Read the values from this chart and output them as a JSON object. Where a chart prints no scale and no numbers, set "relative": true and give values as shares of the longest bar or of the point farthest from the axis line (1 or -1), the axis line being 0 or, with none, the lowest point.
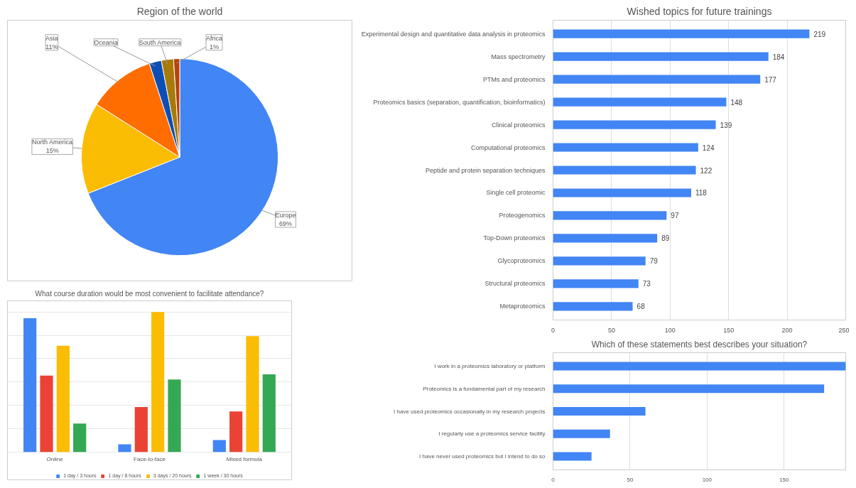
{
  "chart_data": [
    {
      "type": "pie",
      "title": "Region of the world",
      "categories": [
        "Europe",
        "North America",
        "Asia",
        "Oceania",
        "South America",
        "Africa"
      ],
      "values": [
        69,
        15,
        11,
        2,
        2,
        1
      ],
      "colors": [
        "#4285f4",
        "#fbbc04",
        "#ff6d01",
        "#0b4fb5",
        "#a77a0a",
        "#b5430b"
      ],
      "value_labels": [
        "69%",
        "15%",
        "11%",
        null,
        null,
        "1%"
      ]
    },
    {
      "type": "bar",
      "orientation": "horizontal",
      "title": "Wished topics for future trainings",
      "categories": [
        "Experimental design and quantitative data analysis in proteomics",
        "Mass spectrometry",
        "PTMs and proteomics",
        "Proteomics basics (separation, quantification, bioinformatics)",
        "Clinical proteomics",
        "Computational proteomics",
        "Peptide and protein separation techniques",
        "Single cell proteomic",
        "Proteogenomics",
        "Top-Down proteomics",
        "Glycoproteomics",
        "Structural proteomics",
        "Metaproteomics"
      ],
      "values": [
        219,
        184,
        177,
        148,
        139,
        124,
        122,
        118,
        97,
        89,
        79,
        73,
        68
      ],
      "color": "#4285f4",
      "xlim": [
        0,
        250
      ],
      "xticks": [
        0,
        50,
        100,
        150,
        200,
        250
      ],
      "grid": "x",
      "data_labels": true
    },
    {
      "type": "bar",
      "title": "What course duration would be most convenient to facilitate attendance?",
      "categories": [
        "Online",
        "Face-to-face",
        "Mixed formula"
      ],
      "relative": true,
      "grid": "y",
      "legend": "bottom",
      "series": [
        {
          "name": "1 day / 3 hours",
          "color": "#4285f4",
          "values": [
            0.955,
            0.054,
            0.084
          ]
        },
        {
          "name": "1 day / 8 hours",
          "color": "#ea4335",
          "values": [
            0.545,
            0.321,
            0.289
          ]
        },
        {
          "name": "3 days / 20 hours",
          "color": "#fbbc04",
          "values": [
            0.759,
            1,
            0.827
          ]
        },
        {
          "name": "1 week / 30 hours",
          "color": "#34a853",
          "values": [
            0.202,
            0.518,
            0.554
          ]
        }
      ]
    },
    {
      "type": "bar",
      "orientation": "horizontal",
      "title": "Which of these statements best describes your situation?",
      "categories": [
        "I work in a proteomics laboratory or platform",
        "Proteomics is a fundamental part of my research",
        "I have used proteomics occasionally in my research projects",
        "I regularly use a proteomics service facility",
        "I have never used proteomics but I intend to do so"
      ],
      "values": [
        190,
        176,
        60,
        37,
        25
      ],
      "color": "#4285f4",
      "xlim": [
        0,
        190
      ],
      "xticks": [
        0,
        50,
        100,
        150
      ],
      "grid": "x"
    }
  ]
}
